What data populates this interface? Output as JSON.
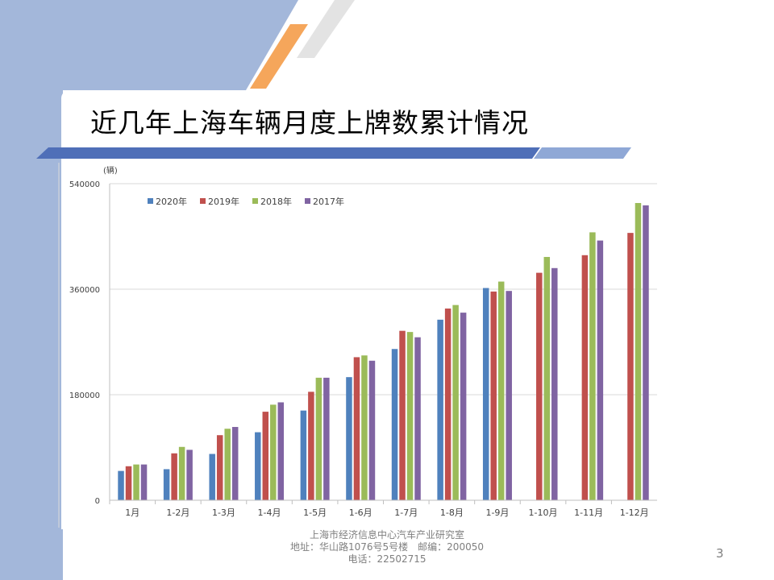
{
  "slide": {
    "title": "近几年上海车辆月度上牌数累计情况",
    "page_number": "3",
    "footer": {
      "line1": "上海市经济信息中心汽车产业研究室",
      "line2": "地址：华山路1076号5号楼　邮编：200050",
      "line3": "电话：22502715"
    }
  },
  "colors": {
    "2020": "#4f81bd",
    "2019": "#c0504d",
    "2018": "#9bbb59",
    "2017": "#8064a2",
    "accent_blue": "#4f6fb8",
    "accent_orange": "#f5a65b",
    "panel": "#a3b7da"
  },
  "chart_data": {
    "type": "bar",
    "unit_label": "(辆)",
    "categories": [
      "1月",
      "1-2月",
      "1-3月",
      "1-4月",
      "1-5月",
      "1-6月",
      "1-7月",
      "1-8月",
      "1-9月",
      "1-10月",
      "1-11月",
      "1-12月"
    ],
    "ylim": [
      0,
      540000
    ],
    "yticks": [
      "0",
      "180000",
      "360000",
      "540000"
    ],
    "legend_position": "top-left",
    "series": [
      {
        "name": "2020年",
        "values": [
          50000,
          53000,
          79000,
          116000,
          153000,
          210000,
          258000,
          308000,
          362000,
          null,
          null,
          null
        ]
      },
      {
        "name": "2019年",
        "values": [
          58000,
          80000,
          111000,
          151000,
          185000,
          244000,
          289000,
          327000,
          356000,
          388000,
          418000,
          456000
        ]
      },
      {
        "name": "2018年",
        "values": [
          61000,
          91000,
          122000,
          163000,
          209000,
          247000,
          287000,
          333000,
          373000,
          415000,
          457000,
          507000
        ]
      },
      {
        "name": "2017年",
        "values": [
          61000,
          86000,
          125000,
          167000,
          209000,
          238000,
          278000,
          320000,
          357000,
          396000,
          443000,
          503000
        ]
      }
    ]
  }
}
